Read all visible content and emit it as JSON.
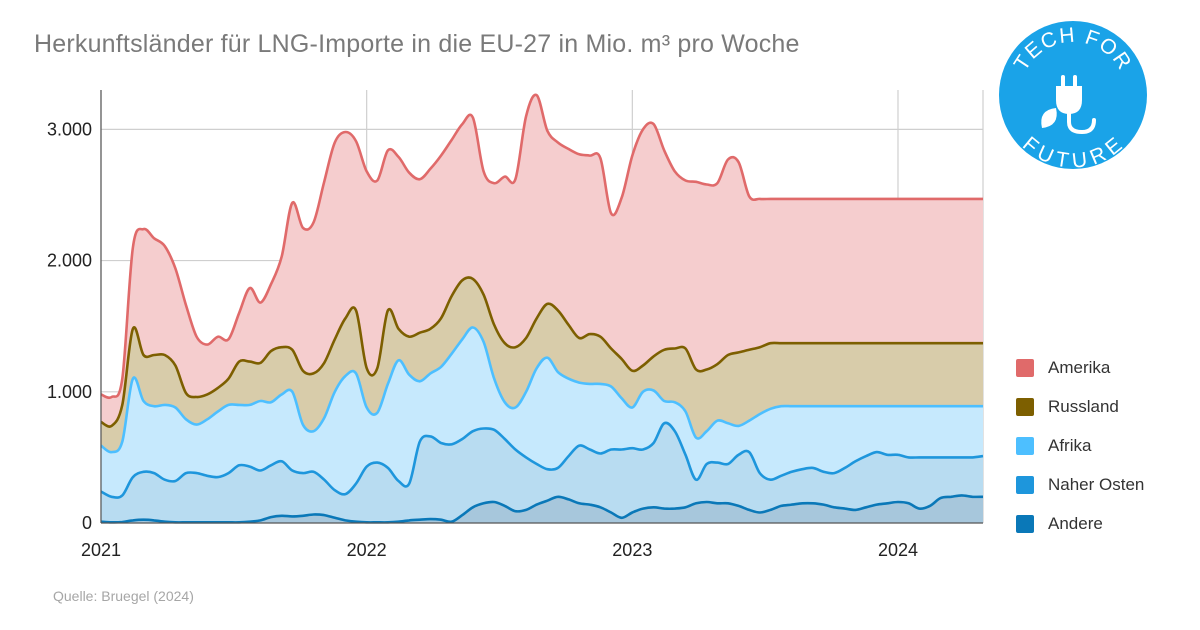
{
  "title": "Herkunftsländer für LNG-Importe in die EU-27 in Mio. m³ pro Woche",
  "source": "Quelle: Bruegel (2024)",
  "logo": {
    "text_top": "TECH FOR",
    "text_bottom": "FUTURE",
    "color": "#1aa3e8",
    "icon": "plug-leaf-icon"
  },
  "chart_data": {
    "type": "area",
    "stacked": true,
    "title": "Herkunftsländer für LNG-Importe in die EU-27 in Mio. m³ pro Woche",
    "xlabel": "",
    "ylabel": "",
    "x": [
      2021.0,
      2021.04,
      2021.08,
      2021.12,
      2021.16,
      2021.2,
      2021.24,
      2021.28,
      2021.32,
      2021.36,
      2021.4,
      2021.44,
      2021.48,
      2021.52,
      2021.56,
      2021.6,
      2021.64,
      2021.68,
      2021.72,
      2021.76,
      2021.8,
      2021.84,
      2021.88,
      2021.92,
      2021.96,
      2022.0,
      2022.04,
      2022.08,
      2022.12,
      2022.16,
      2022.2,
      2022.24,
      2022.28,
      2022.32,
      2022.36,
      2022.4,
      2022.44,
      2022.48,
      2022.52,
      2022.56,
      2022.6,
      2022.64,
      2022.68,
      2022.72,
      2022.76,
      2022.8,
      2022.84,
      2022.88,
      2022.92,
      2022.96,
      2023.0,
      2023.04,
      2023.08,
      2023.12,
      2023.16,
      2023.2,
      2023.24,
      2023.28,
      2023.32,
      2023.36,
      2023.4,
      2023.44,
      2023.48,
      2023.52,
      2023.56,
      2023.6,
      2023.64,
      2023.68,
      2023.72,
      2023.76,
      2023.8,
      2023.84,
      2023.88,
      2023.92,
      2023.96,
      2024.0,
      2024.04,
      2024.08,
      2024.12,
      2024.16,
      2024.2,
      2024.24,
      2024.28,
      2024.32
    ],
    "xticks": [
      "2021",
      "2022",
      "2023",
      "2024"
    ],
    "xtick_values": [
      2021,
      2022,
      2023,
      2024
    ],
    "ylim": [
      0,
      3300
    ],
    "yticks": [
      0,
      1000,
      2000,
      3000
    ],
    "ytick_labels": [
      "0",
      "1.000",
      "2.000",
      "3.000"
    ],
    "grid": true,
    "legend_position": "right",
    "series": [
      {
        "name": "Andere",
        "color": "#0a78b8",
        "totals": [
          10,
          5,
          8,
          20,
          25,
          20,
          10,
          5,
          5,
          5,
          5,
          5,
          5,
          5,
          10,
          20,
          45,
          55,
          50,
          55,
          65,
          60,
          40,
          20,
          10,
          5,
          5,
          5,
          10,
          20,
          25,
          30,
          25,
          10,
          60,
          120,
          150,
          160,
          130,
          90,
          100,
          140,
          170,
          200,
          180,
          150,
          140,
          120,
          80,
          40,
          80,
          110,
          120,
          110,
          110,
          120,
          150,
          160,
          150,
          150,
          130,
          100,
          80,
          100,
          130,
          140,
          150,
          150,
          140,
          120,
          110,
          100,
          120,
          140,
          150,
          160,
          150,
          110,
          130,
          190,
          200,
          210,
          200,
          200
        ]
      },
      {
        "name": "Naher Osten",
        "color": "#1e96dc",
        "totals": [
          240,
          200,
          210,
          350,
          390,
          380,
          330,
          320,
          380,
          380,
          360,
          350,
          380,
          440,
          430,
          400,
          440,
          470,
          400,
          380,
          390,
          330,
          250,
          220,
          300,
          430,
          460,
          420,
          320,
          300,
          620,
          660,
          610,
          600,
          640,
          700,
          720,
          710,
          640,
          560,
          500,
          450,
          410,
          420,
          510,
          590,
          560,
          530,
          560,
          560,
          570,
          560,
          610,
          760,
          700,
          520,
          330,
          450,
          460,
          450,
          520,
          540,
          380,
          330,
          360,
          390,
          410,
          420,
          390,
          380,
          420,
          470,
          510,
          540,
          520,
          520,
          500,
          500,
          500,
          500,
          500,
          500,
          500,
          510
        ]
      },
      {
        "name": "Afrika",
        "color": "#4dbfff",
        "totals": [
          590,
          540,
          620,
          1100,
          930,
          890,
          900,
          880,
          790,
          750,
          790,
          850,
          900,
          900,
          900,
          930,
          920,
          980,
          1000,
          750,
          700,
          800,
          1000,
          1120,
          1140,
          880,
          840,
          1060,
          1240,
          1130,
          1080,
          1140,
          1190,
          1290,
          1400,
          1490,
          1380,
          1100,
          920,
          880,
          1000,
          1180,
          1260,
          1150,
          1100,
          1070,
          1060,
          1060,
          1040,
          950,
          880,
          1000,
          1010,
          930,
          920,
          850,
          650,
          700,
          780,
          760,
          740,
          780,
          830,
          870,
          890,
          890,
          890,
          890,
          890,
          890,
          890,
          890,
          890,
          890,
          890,
          890,
          890,
          890,
          890,
          890,
          890,
          890,
          890,
          890
        ]
      },
      {
        "name": "Russland",
        "color": "#7d5f00",
        "totals": [
          770,
          740,
          900,
          1480,
          1280,
          1280,
          1280,
          1200,
          990,
          960,
          980,
          1030,
          1100,
          1230,
          1230,
          1220,
          1310,
          1340,
          1320,
          1160,
          1140,
          1220,
          1400,
          1560,
          1620,
          1180,
          1180,
          1620,
          1480,
          1420,
          1450,
          1480,
          1560,
          1730,
          1850,
          1860,
          1740,
          1510,
          1370,
          1340,
          1410,
          1560,
          1670,
          1620,
          1510,
          1410,
          1440,
          1420,
          1330,
          1250,
          1160,
          1200,
          1270,
          1320,
          1330,
          1330,
          1170,
          1170,
          1210,
          1280,
          1300,
          1320,
          1340,
          1370,
          1370,
          1370,
          1370,
          1370,
          1370,
          1370,
          1370,
          1370,
          1370,
          1370,
          1370,
          1370,
          1370,
          1370,
          1370,
          1370,
          1370,
          1370,
          1370,
          1370
        ]
      },
      {
        "name": "Amerika",
        "color": "#e06a6a",
        "totals": [
          980,
          960,
          1100,
          2100,
          2240,
          2170,
          2110,
          1940,
          1660,
          1420,
          1360,
          1420,
          1400,
          1600,
          1790,
          1680,
          1820,
          2030,
          2440,
          2250,
          2290,
          2600,
          2900,
          2980,
          2910,
          2680,
          2610,
          2840,
          2790,
          2670,
          2620,
          2700,
          2800,
          2920,
          3040,
          3090,
          2680,
          2590,
          2640,
          2620,
          3100,
          3260,
          2990,
          2900,
          2850,
          2810,
          2800,
          2780,
          2360,
          2480,
          2800,
          3000,
          3040,
          2840,
          2680,
          2610,
          2600,
          2580,
          2590,
          2770,
          2750,
          2490,
          2470,
          2470,
          2470,
          2470,
          2470,
          2470,
          2470,
          2470,
          2470,
          2470,
          2470,
          2470,
          2470,
          2470,
          2470,
          2470,
          2470,
          2470,
          2470,
          2470,
          2470,
          2470
        ]
      }
    ],
    "legend": [
      "Amerika",
      "Russland",
      "Afrika",
      "Naher Osten",
      "Andere"
    ]
  }
}
